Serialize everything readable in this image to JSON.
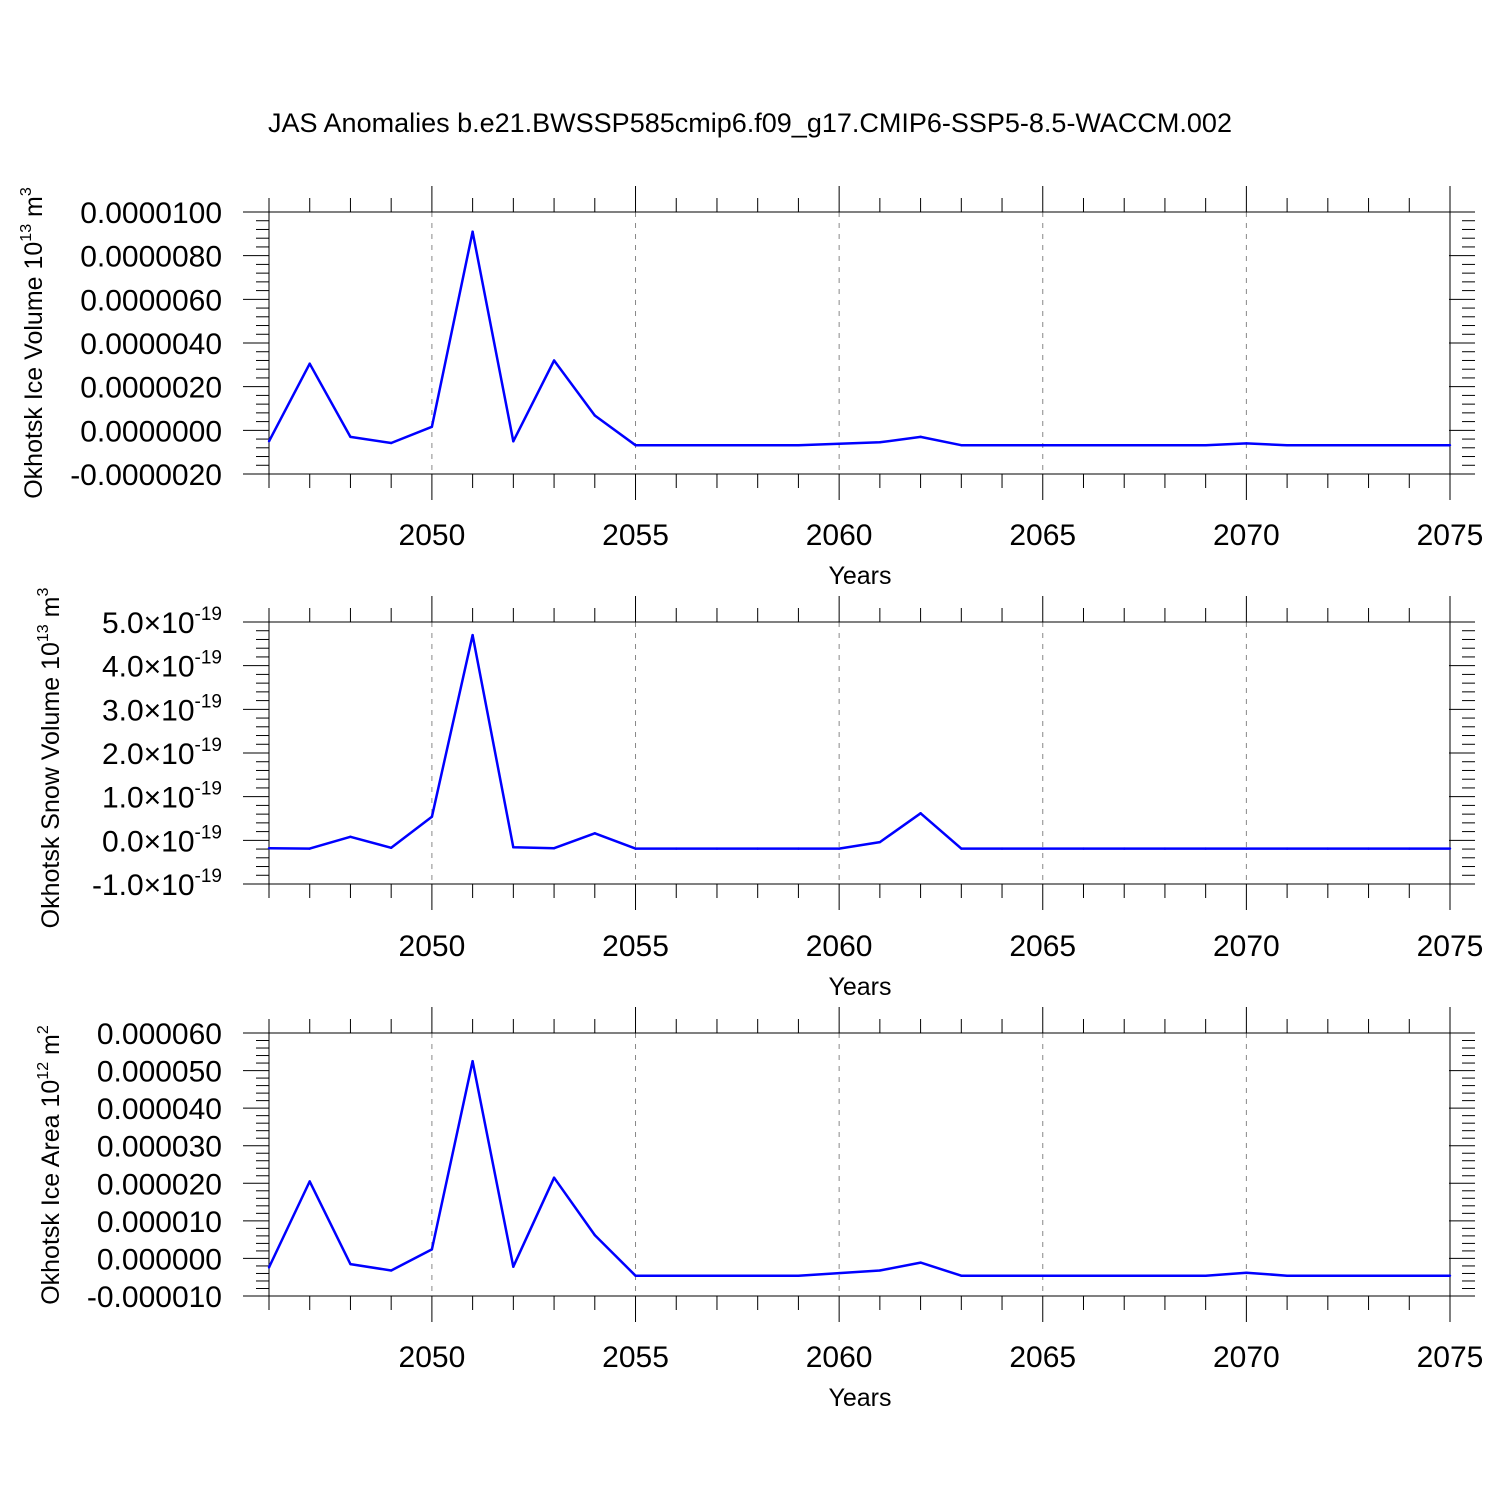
{
  "title": "JAS Anomalies b.e21.BWSSP585cmip6.f09_g17.CMIP6-SSP5-8.5-WACCM.002",
  "line_color": "#0000ff",
  "chart_data": [
    {
      "type": "line",
      "ylabel_main": "Okhotsk Ice Volume 10",
      "ylabel_exp": "13",
      "ylabel_unit": " m",
      "ylabel_unit_exp": "3",
      "xlabel": "Years",
      "xlim": [
        2046,
        2075
      ],
      "ylim": [
        -2e-06,
        1e-05
      ],
      "grid": "vertical dashed at major x ticks",
      "x_ticks": [
        2050,
        2055,
        2060,
        2065,
        2070,
        2075
      ],
      "x_tick_labels": [
        "2050",
        "2055",
        "2060",
        "2065",
        "2070",
        "2075"
      ],
      "y_ticks": [
        1e-05,
        8e-06,
        6e-06,
        4e-06,
        2e-06,
        0,
        -2e-06
      ],
      "y_tick_labels": [
        "0.0000100",
        "0.0000080",
        "0.0000060",
        "0.0000040",
        "0.0000020",
        "0.0000000",
        "-0.0000020"
      ],
      "x": [
        2046,
        2047,
        2048,
        2049,
        2050,
        2051,
        2052,
        2053,
        2054,
        2055,
        2056,
        2057,
        2058,
        2059,
        2060,
        2061,
        2062,
        2063,
        2064,
        2065,
        2066,
        2067,
        2068,
        2069,
        2070,
        2071,
        2072,
        2073,
        2074,
        2075
      ],
      "values": [
        -5e-07,
        3.05e-06,
        -3e-07,
        -5.8e-07,
        1.6e-07,
        9.1e-06,
        -5e-07,
        3.2e-06,
        6.8e-07,
        -6.8e-07,
        -6.8e-07,
        -6.8e-07,
        -6.8e-07,
        -6.8e-07,
        -6.1e-07,
        -5.5e-07,
        -3e-07,
        -6.8e-07,
        -6.8e-07,
        -6.8e-07,
        -6.8e-07,
        -6.8e-07,
        -6.8e-07,
        -6.8e-07,
        -6e-07,
        -6.8e-07,
        -6.8e-07,
        -6.8e-07,
        -6.8e-07,
        -6.8e-07
      ]
    },
    {
      "type": "line",
      "ylabel_main": "Okhotsk Snow Volume 10",
      "ylabel_exp": "13",
      "ylabel_unit": " m",
      "ylabel_unit_exp": "3",
      "xlabel": "Years",
      "xlim": [
        2046,
        2075
      ],
      "ylim": [
        -1e-19,
        5e-19
      ],
      "grid": "vertical dashed at major x ticks",
      "x_ticks": [
        2050,
        2055,
        2060,
        2065,
        2070,
        2075
      ],
      "x_tick_labels": [
        "2050",
        "2055",
        "2060",
        "2065",
        "2070",
        "2075"
      ],
      "y_ticks": [
        5e-19,
        4e-19,
        3e-19,
        2e-19,
        1e-19,
        0,
        -1e-19
      ],
      "y_tick_mantissas": [
        "5.0",
        "4.0",
        "3.0",
        "2.0",
        "1.0",
        "0.0",
        "-1.0"
      ],
      "y_tick_times": "×10",
      "y_tick_exp": "-19",
      "x": [
        2046,
        2047,
        2048,
        2049,
        2050,
        2051,
        2052,
        2053,
        2054,
        2055,
        2056,
        2057,
        2058,
        2059,
        2060,
        2061,
        2062,
        2063,
        2064,
        2065,
        2066,
        2067,
        2068,
        2069,
        2070,
        2071,
        2072,
        2073,
        2074,
        2075
      ],
      "values": [
        -1.8e-20,
        -1.9e-20,
        8e-21,
        -1.7e-20,
        5.4e-20,
        4.7e-19,
        -1.6e-20,
        -1.8e-20,
        1.6e-20,
        -1.9e-20,
        -1.9e-20,
        -1.9e-20,
        -1.9e-20,
        -1.9e-20,
        -1.9e-20,
        -4e-21,
        6.2e-20,
        -1.9e-20,
        -1.9e-20,
        -1.9e-20,
        -1.9e-20,
        -1.9e-20,
        -1.9e-20,
        -1.9e-20,
        -1.9e-20,
        -1.9e-20,
        -1.9e-20,
        -1.9e-20,
        -1.9e-20,
        -1.9e-20
      ]
    },
    {
      "type": "line",
      "ylabel_main": "Okhotsk Ice Area 10",
      "ylabel_exp": "12",
      "ylabel_unit": " m",
      "ylabel_unit_exp": "2",
      "xlabel": "Years",
      "xlim": [
        2046,
        2075
      ],
      "ylim": [
        -1e-05,
        6e-05
      ],
      "grid": "vertical dashed at major x ticks",
      "x_ticks": [
        2050,
        2055,
        2060,
        2065,
        2070,
        2075
      ],
      "x_tick_labels": [
        "2050",
        "2055",
        "2060",
        "2065",
        "2070",
        "2075"
      ],
      "y_ticks": [
        6e-05,
        5e-05,
        4e-05,
        3e-05,
        2e-05,
        1e-05,
        0,
        -1e-05
      ],
      "y_tick_labels": [
        "0.000060",
        "0.000050",
        "0.000040",
        "0.000030",
        "0.000020",
        "0.000010",
        "0.000000",
        "-0.000010"
      ],
      "x": [
        2046,
        2047,
        2048,
        2049,
        2050,
        2051,
        2052,
        2053,
        2054,
        2055,
        2056,
        2057,
        2058,
        2059,
        2060,
        2061,
        2062,
        2063,
        2064,
        2065,
        2066,
        2067,
        2068,
        2069,
        2070,
        2071,
        2072,
        2073,
        2074,
        2075
      ],
      "values": [
        -2.4e-06,
        2.05e-05,
        -1.5e-06,
        -3.2e-06,
        2.4e-06,
        5.25e-05,
        -2.2e-06,
        2.15e-05,
        6.2e-06,
        -4.6e-06,
        -4.6e-06,
        -4.6e-06,
        -4.6e-06,
        -4.6e-06,
        -3.9e-06,
        -3.2e-06,
        -1.1e-06,
        -4.6e-06,
        -4.6e-06,
        -4.6e-06,
        -4.6e-06,
        -4.6e-06,
        -4.6e-06,
        -4.6e-06,
        -3.8e-06,
        -4.6e-06,
        -4.6e-06,
        -4.6e-06,
        -4.6e-06,
        -4.6e-06
      ]
    }
  ]
}
